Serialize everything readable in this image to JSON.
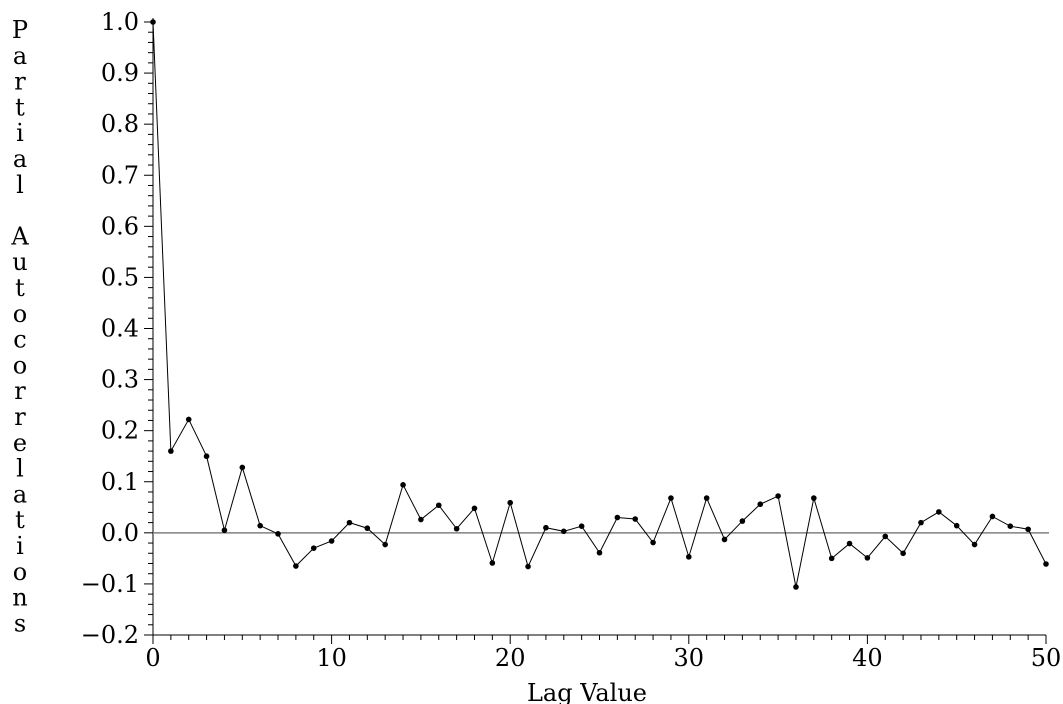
{
  "chart_data": {
    "type": "line",
    "title": "",
    "xlabel": "Lag Value",
    "ylabel": "Partial Autocorrelations",
    "xlim": [
      0,
      50
    ],
    "ylim": [
      -0.2,
      1.0
    ],
    "x_ticks": [
      0,
      10,
      20,
      30,
      40,
      50
    ],
    "y_ticks": [
      1.0,
      0.9,
      0.8,
      0.7,
      0.6,
      0.5,
      0.4,
      0.3,
      0.2,
      0.1,
      0.0,
      -0.1,
      -0.2
    ],
    "y_tick_labels": [
      "1.0",
      "0.9",
      "0.8",
      "0.7",
      "0.6",
      "0.5",
      "0.4",
      "0.3",
      "0.2",
      "0.1",
      "0.0",
      "−0.1",
      "−0.2"
    ],
    "x_tick_labels": [
      "0",
      "10",
      "20",
      "30",
      "40",
      "50"
    ],
    "grid": false,
    "legend": "none",
    "reference_line": 0.0,
    "series": [
      {
        "x": [
          0,
          1,
          2,
          3,
          4,
          5,
          6,
          7,
          8,
          9,
          10,
          11,
          12,
          13,
          14,
          15,
          16,
          17,
          18,
          19,
          20,
          21,
          22,
          23,
          24,
          25,
          26,
          27,
          28,
          29,
          30,
          31,
          32,
          33,
          34,
          35,
          36,
          37,
          38,
          39,
          40,
          41,
          42,
          43,
          44,
          45,
          46,
          47,
          48,
          49,
          50
        ],
        "values": [
          1.0,
          0.16,
          0.222,
          0.15,
          0.005,
          0.128,
          0.014,
          -0.002,
          -0.065,
          -0.03,
          -0.016,
          0.02,
          0.009,
          -0.023,
          0.094,
          0.026,
          0.054,
          0.008,
          0.048,
          -0.059,
          0.059,
          -0.066,
          0.01,
          0.003,
          0.013,
          -0.039,
          0.03,
          0.027,
          -0.019,
          0.068,
          -0.047,
          0.068,
          -0.013,
          0.023,
          0.056,
          0.072,
          -0.106,
          0.068,
          -0.05,
          -0.021,
          -0.049,
          -0.007,
          -0.04,
          0.02,
          0.041,
          0.014,
          -0.023,
          0.032,
          0.013,
          0.007,
          -0.061
        ]
      }
    ],
    "colors": {
      "line": "#000000",
      "marker": "#000000",
      "reference": "#808080",
      "axis": "#000000"
    }
  }
}
